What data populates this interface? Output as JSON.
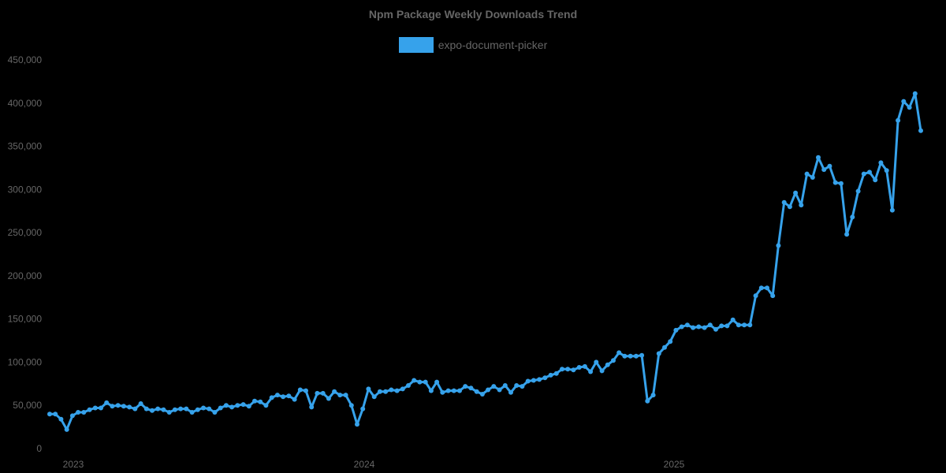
{
  "chart_data": {
    "type": "line",
    "title": "Npm Package Weekly Downloads Trend",
    "xlabel": "",
    "ylabel": "",
    "ylim": [
      0,
      450000
    ],
    "yticks": [
      "0",
      "50,000",
      "100,000",
      "150,000",
      "200,000",
      "250,000",
      "300,000",
      "350,000",
      "400,000",
      "450,000"
    ],
    "xticks": [
      "2023",
      "2024",
      "2025"
    ],
    "grid": false,
    "legend_position": "top",
    "series": [
      {
        "name": "expo-document-picker",
        "color": "#36a2eb",
        "values": [
          40000,
          40000,
          34000,
          22000,
          38000,
          42000,
          42000,
          45000,
          47000,
          47000,
          53000,
          49000,
          50000,
          49000,
          48000,
          46000,
          52000,
          46000,
          44000,
          46000,
          45000,
          42000,
          45000,
          46000,
          46000,
          42000,
          45000,
          47000,
          46000,
          42000,
          47000,
          50000,
          48000,
          50000,
          51000,
          49000,
          55000,
          54000,
          50000,
          59000,
          62000,
          60000,
          61000,
          57000,
          68000,
          67000,
          48000,
          64000,
          64000,
          58000,
          66000,
          62000,
          62000,
          50000,
          28000,
          46000,
          69000,
          60000,
          66000,
          66000,
          68000,
          67000,
          69000,
          73000,
          79000,
          77000,
          77000,
          67000,
          77000,
          65000,
          67000,
          67000,
          67000,
          72000,
          70000,
          66000,
          63000,
          68000,
          72000,
          68000,
          73000,
          65000,
          73000,
          72000,
          78000,
          79000,
          80000,
          82000,
          85000,
          87000,
          92000,
          92000,
          91000,
          94000,
          95000,
          89000,
          100000,
          90000,
          97000,
          102000,
          111000,
          107000,
          107000,
          107000,
          108000,
          55000,
          62000,
          110000,
          117000,
          124000,
          137000,
          141000,
          143000,
          140000,
          141000,
          140000,
          143000,
          138000,
          142000,
          142000,
          149000,
          143000,
          143000,
          143000,
          177000,
          186000,
          186000,
          177000,
          235000,
          285000,
          280000,
          296000,
          282000,
          318000,
          314000,
          337000,
          323000,
          327000,
          308000,
          307000,
          248000,
          268000,
          298000,
          318000,
          320000,
          311000,
          331000,
          322000,
          276000,
          380000,
          402000,
          395000,
          411000,
          368000
        ]
      }
    ]
  }
}
